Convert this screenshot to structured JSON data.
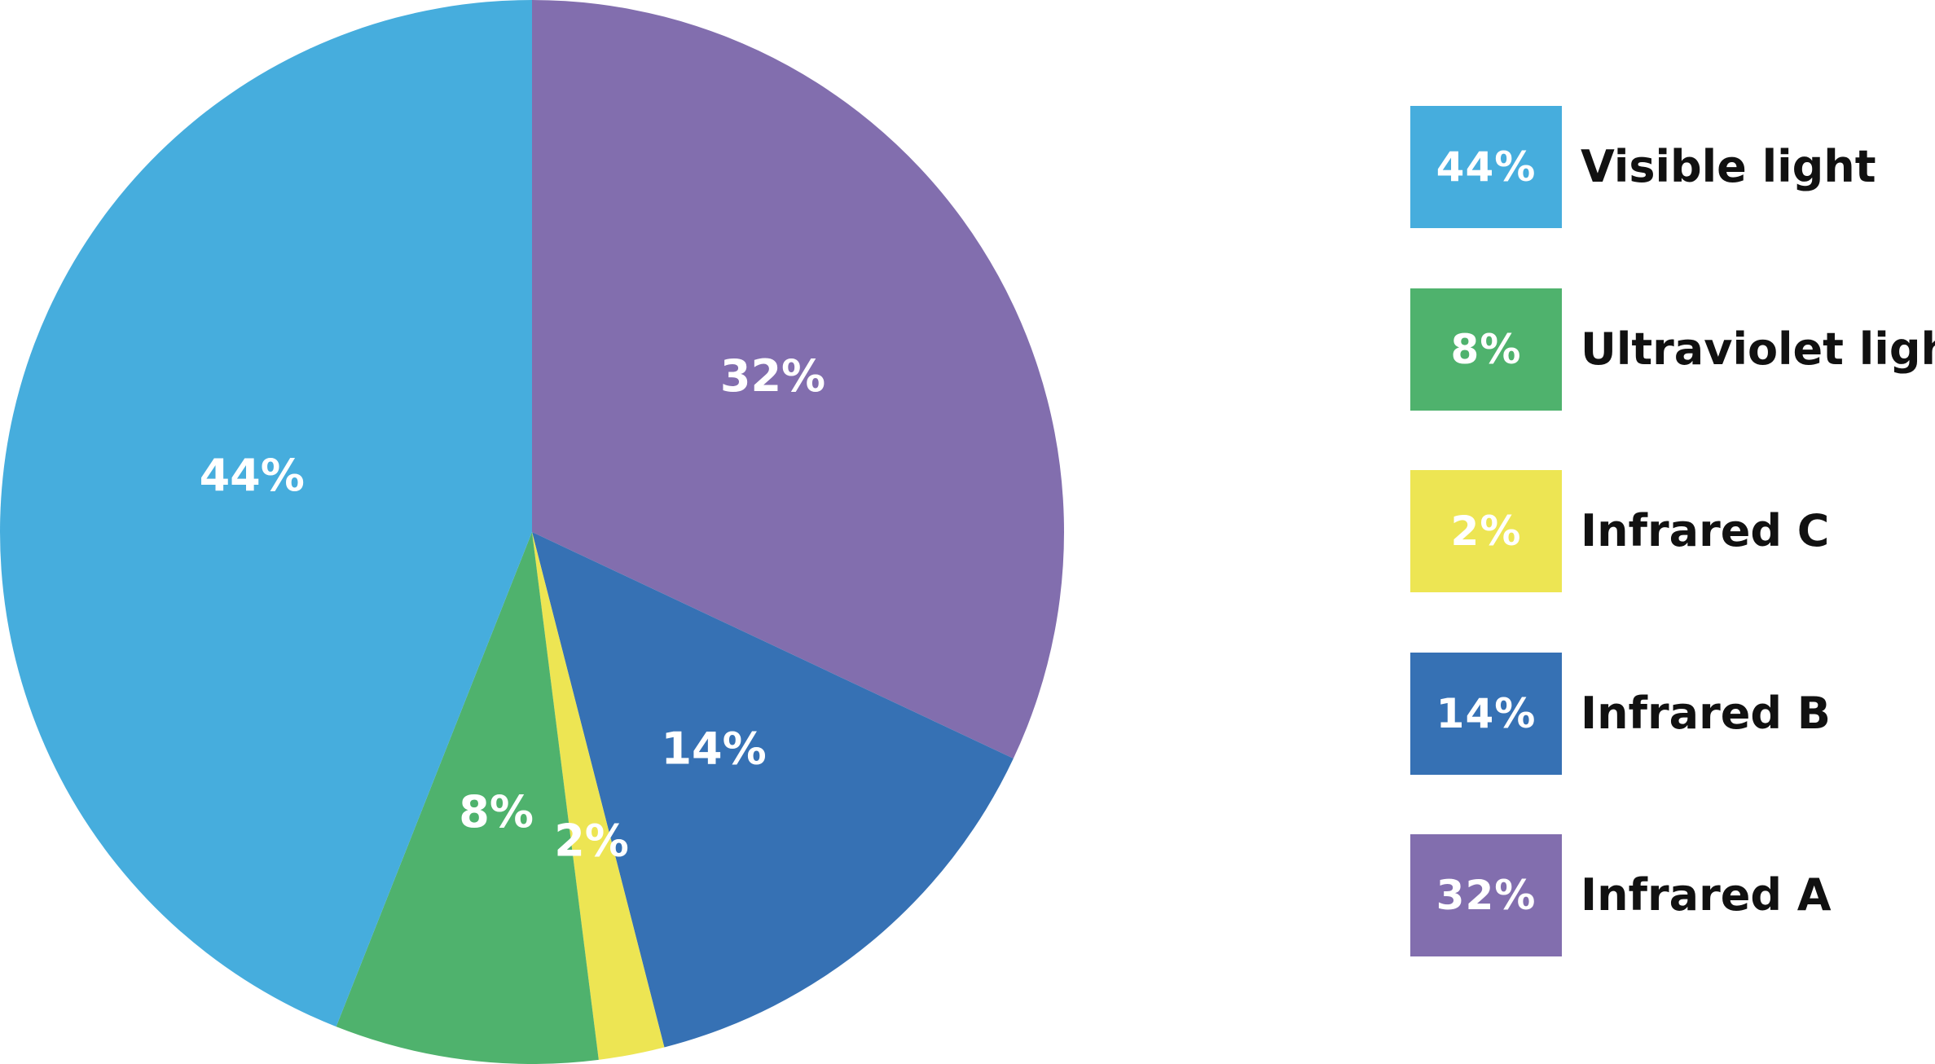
{
  "chart_data": {
    "type": "pie",
    "slices": [
      {
        "label": "Infrared A",
        "value": 32,
        "display": "32%",
        "color": "#826eae"
      },
      {
        "label": "Infrared B",
        "value": 14,
        "display": "14%",
        "color": "#3671b4"
      },
      {
        "label": "Infrared C",
        "value": 2,
        "display": "2%",
        "color": "#ede553"
      },
      {
        "label": "Ultraviolet light",
        "value": 8,
        "display": "8%",
        "color": "#4fb26d"
      },
      {
        "label": "Visible light",
        "value": 44,
        "display": "44%",
        "color": "#46addd"
      }
    ],
    "legend_position": "right",
    "start_angle": "top",
    "direction": "clockwise"
  },
  "legend": {
    "items": [
      {
        "swatch_text": "44%",
        "label": "Visible light",
        "color": "#46addd"
      },
      {
        "swatch_text": "8%",
        "label": "Ultraviolet light",
        "color": "#4fb26d"
      },
      {
        "swatch_text": "2%",
        "label": "Infrared C",
        "color": "#ede553"
      },
      {
        "swatch_text": "14%",
        "label": "Infrared B",
        "color": "#3671b4"
      },
      {
        "swatch_text": "32%",
        "label": "Infrared A",
        "color": "#826eae"
      }
    ]
  }
}
